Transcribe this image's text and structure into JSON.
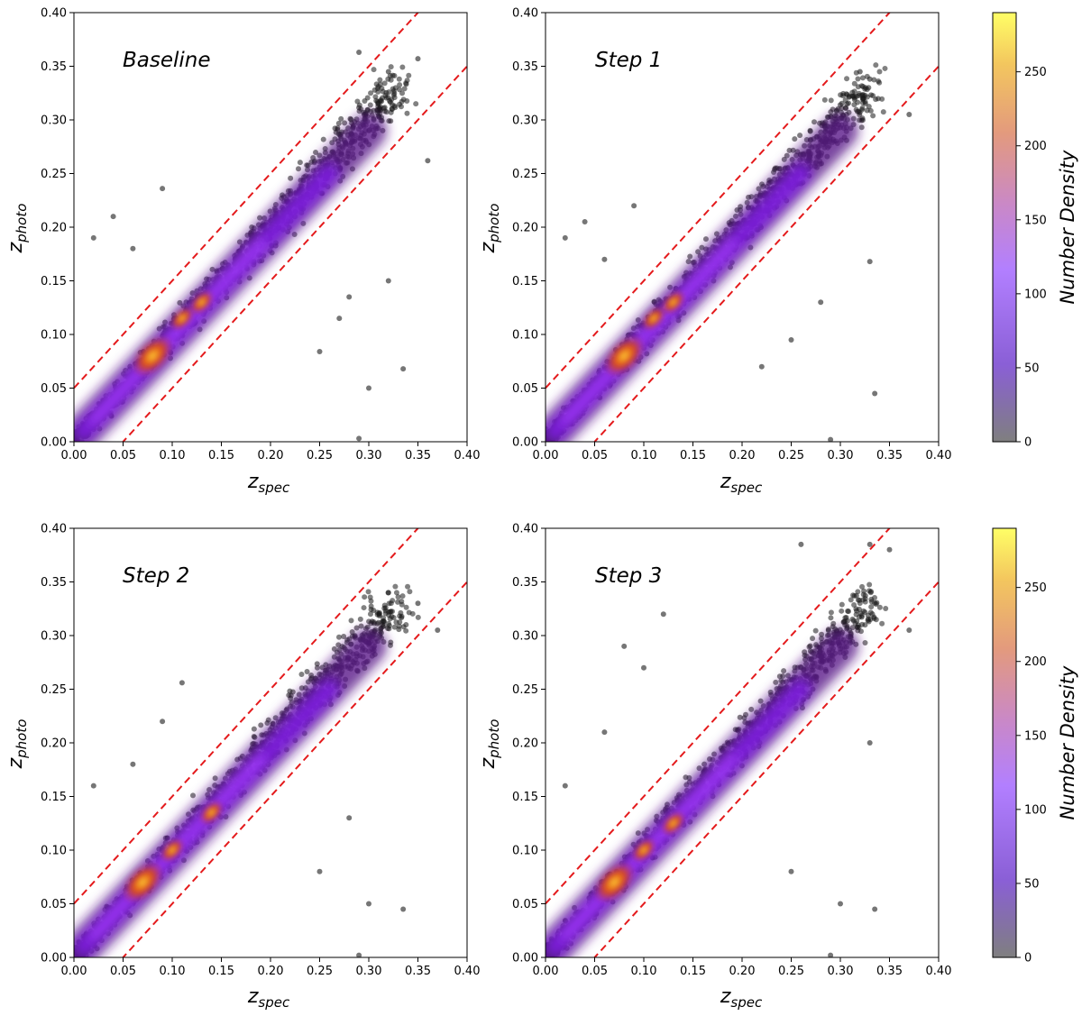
{
  "colors": {
    "band_line": "#e41a1c",
    "outlier": "#1a1a1a",
    "cmap_low": "#7f7f7f",
    "cmap_mid": "#9d4dff",
    "cmap_high": "#ffff66"
  },
  "chart_data": [
    {
      "type": "scatter",
      "title": "Baseline",
      "xlabel": "z",
      "xlabel_sub": "spec",
      "ylabel": "z",
      "ylabel_sub": "photo",
      "xlim": [
        0,
        0.4
      ],
      "ylim": [
        0,
        0.4
      ],
      "xticks": [
        "0.00",
        "0.05",
        "0.10",
        "0.15",
        "0.20",
        "0.25",
        "0.30",
        "0.35",
        "0.40"
      ],
      "yticks": [
        "0.00",
        "0.05",
        "0.10",
        "0.15",
        "0.20",
        "0.25",
        "0.30",
        "0.35",
        "0.40"
      ],
      "band": {
        "intercepts": [
          0.05,
          -0.05
        ],
        "slope": 1.0
      },
      "density_peaks": [
        [
          0.08,
          0.08
        ],
        [
          0.11,
          0.115
        ],
        [
          0.13,
          0.13
        ]
      ],
      "outliers": [
        [
          0.29,
          0.363
        ],
        [
          0.32,
          0.345
        ],
        [
          0.35,
          0.357
        ],
        [
          0.28,
          0.135
        ],
        [
          0.335,
          0.068
        ],
        [
          0.29,
          0.003
        ],
        [
          0.32,
          0.15
        ],
        [
          0.36,
          0.262
        ],
        [
          0.09,
          0.236
        ],
        [
          0.02,
          0.19
        ],
        [
          0.25,
          0.084
        ],
        [
          0.3,
          0.05
        ],
        [
          0.04,
          0.21
        ],
        [
          0.27,
          0.115
        ],
        [
          0.06,
          0.18
        ]
      ]
    },
    {
      "type": "scatter",
      "title": "Step 1",
      "xlabel": "z",
      "xlabel_sub": "spec",
      "ylabel": "z",
      "ylabel_sub": "photo",
      "xlim": [
        0,
        0.4
      ],
      "ylim": [
        0,
        0.4
      ],
      "xticks": [
        "0.00",
        "0.05",
        "0.10",
        "0.15",
        "0.20",
        "0.25",
        "0.30",
        "0.35",
        "0.40"
      ],
      "yticks": [
        "0.00",
        "0.05",
        "0.10",
        "0.15",
        "0.20",
        "0.25",
        "0.30",
        "0.35",
        "0.40"
      ],
      "band": {
        "intercepts": [
          0.05,
          -0.05
        ],
        "slope": 1.0
      },
      "density_peaks": [
        [
          0.08,
          0.08
        ],
        [
          0.11,
          0.115
        ],
        [
          0.13,
          0.13
        ]
      ],
      "outliers": [
        [
          0.33,
          0.338
        ],
        [
          0.32,
          0.345
        ],
        [
          0.29,
          0.002
        ],
        [
          0.335,
          0.045
        ],
        [
          0.33,
          0.168
        ],
        [
          0.25,
          0.095
        ],
        [
          0.02,
          0.19
        ],
        [
          0.09,
          0.22
        ],
        [
          0.04,
          0.205
        ],
        [
          0.37,
          0.305
        ],
        [
          0.28,
          0.13
        ],
        [
          0.06,
          0.17
        ],
        [
          0.22,
          0.07
        ]
      ]
    },
    {
      "type": "scatter",
      "title": "Step 2",
      "xlabel": "z",
      "xlabel_sub": "spec",
      "ylabel": "z",
      "ylabel_sub": "photo",
      "xlim": [
        0,
        0.4
      ],
      "ylim": [
        0,
        0.4
      ],
      "xticks": [
        "0.00",
        "0.05",
        "0.10",
        "0.15",
        "0.20",
        "0.25",
        "0.30",
        "0.35",
        "0.40"
      ],
      "yticks": [
        "0.00",
        "0.05",
        "0.10",
        "0.15",
        "0.20",
        "0.25",
        "0.30",
        "0.35",
        "0.40"
      ],
      "band": {
        "intercepts": [
          0.05,
          -0.05
        ],
        "slope": 1.0
      },
      "density_peaks": [
        [
          0.07,
          0.07
        ],
        [
          0.1,
          0.1
        ],
        [
          0.14,
          0.135
        ]
      ],
      "outliers": [
        [
          0.32,
          0.34
        ],
        [
          0.335,
          0.045
        ],
        [
          0.29,
          0.002
        ],
        [
          0.35,
          0.33
        ],
        [
          0.02,
          0.16
        ],
        [
          0.09,
          0.22
        ],
        [
          0.25,
          0.08
        ],
        [
          0.28,
          0.13
        ],
        [
          0.3,
          0.05
        ],
        [
          0.37,
          0.305
        ],
        [
          0.11,
          0.256
        ],
        [
          0.06,
          0.18
        ]
      ]
    },
    {
      "type": "scatter",
      "title": "Step 3",
      "xlabel": "z",
      "xlabel_sub": "spec",
      "ylabel": "z",
      "ylabel_sub": "photo",
      "xlim": [
        0,
        0.4
      ],
      "ylim": [
        0,
        0.4
      ],
      "xticks": [
        "0.00",
        "0.05",
        "0.10",
        "0.15",
        "0.20",
        "0.25",
        "0.30",
        "0.35",
        "0.40"
      ],
      "yticks": [
        "0.00",
        "0.05",
        "0.10",
        "0.15",
        "0.20",
        "0.25",
        "0.30",
        "0.35",
        "0.40"
      ],
      "band": {
        "intercepts": [
          0.05,
          -0.05
        ],
        "slope": 1.0
      },
      "density_peaks": [
        [
          0.07,
          0.07
        ],
        [
          0.1,
          0.1
        ],
        [
          0.13,
          0.125
        ]
      ],
      "outliers": [
        [
          0.26,
          0.385
        ],
        [
          0.33,
          0.385
        ],
        [
          0.35,
          0.38
        ],
        [
          0.335,
          0.045
        ],
        [
          0.29,
          0.002
        ],
        [
          0.12,
          0.32
        ],
        [
          0.08,
          0.29
        ],
        [
          0.1,
          0.27
        ],
        [
          0.02,
          0.16
        ],
        [
          0.25,
          0.08
        ],
        [
          0.33,
          0.2
        ],
        [
          0.3,
          0.05
        ],
        [
          0.37,
          0.305
        ],
        [
          0.06,
          0.21
        ]
      ]
    }
  ],
  "colorbars": [
    {
      "label": "Number Density",
      "range": [
        0,
        290
      ],
      "ticks": [
        "0",
        "50",
        "100",
        "150",
        "200",
        "250"
      ]
    },
    {
      "label": "Number Density",
      "range": [
        0,
        290
      ],
      "ticks": [
        "0",
        "50",
        "100",
        "150",
        "200",
        "250"
      ]
    }
  ]
}
